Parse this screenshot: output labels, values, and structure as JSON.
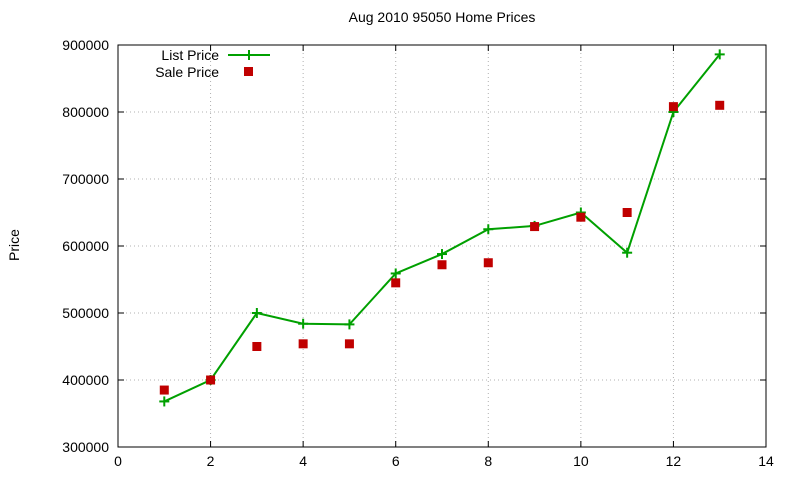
{
  "title": "Aug 2010 95050 Home Prices",
  "ylabel": "Price",
  "colors": {
    "list_price": "#00a000",
    "sale_price": "#c00000",
    "grid": "#b0b0b0",
    "border": "#000000",
    "background": "#ffffff"
  },
  "chart_data": {
    "type": "line",
    "title": "Aug 2010 95050 Home Prices",
    "xlabel": "",
    "ylabel": "Price",
    "xlim": [
      0,
      14
    ],
    "ylim": [
      300000,
      900000
    ],
    "x_ticks": [
      0,
      2,
      4,
      6,
      8,
      10,
      12,
      14
    ],
    "y_ticks": [
      300000,
      400000,
      500000,
      600000,
      700000,
      800000,
      900000
    ],
    "grid": true,
    "legend_position": "top-left-inside",
    "x": [
      1,
      2,
      3,
      4,
      5,
      6,
      7,
      8,
      9,
      10,
      11,
      12,
      13
    ],
    "series": [
      {
        "name": "List Price",
        "style": "line-with-plus-markers",
        "color": "#00a000",
        "values": [
          368000,
          400000,
          500000,
          484000,
          483000,
          559000,
          588000,
          625000,
          630000,
          650000,
          590000,
          800000,
          886000
        ]
      },
      {
        "name": "Sale Price",
        "style": "square-points",
        "color": "#c00000",
        "values": [
          385000,
          400000,
          450000,
          454000,
          454000,
          545000,
          572000,
          575000,
          629000,
          643000,
          650000,
          808000,
          810000
        ]
      }
    ]
  }
}
